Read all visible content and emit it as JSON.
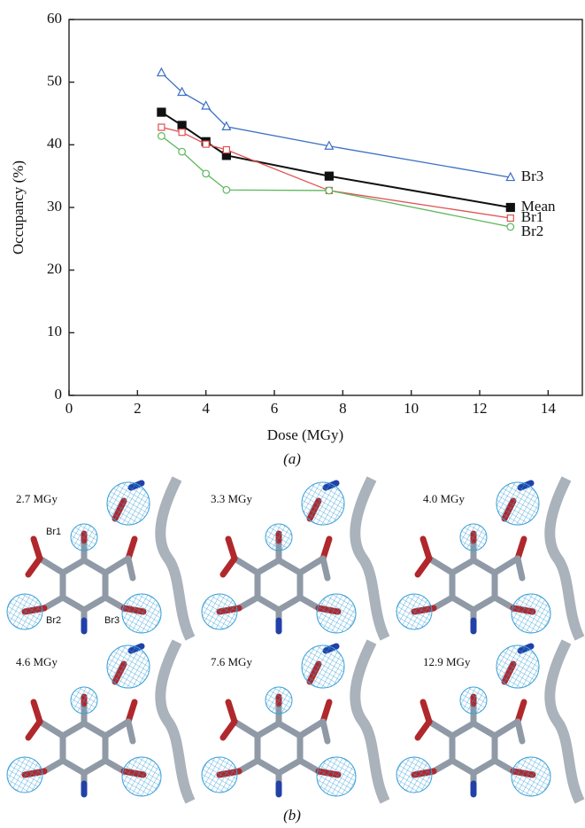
{
  "chart_data": {
    "type": "line",
    "xlabel": "Dose (MGy)",
    "ylabel": "Occupancy (%)",
    "x": [
      2.7,
      3.3,
      4.0,
      4.6,
      7.6,
      12.9
    ],
    "xlim": [
      0,
      15
    ],
    "xticks": [
      0,
      2,
      4,
      6,
      8,
      10,
      12,
      14
    ],
    "ylim": [
      0,
      60
    ],
    "yticks": [
      0,
      10,
      20,
      30,
      40,
      50,
      60
    ],
    "series": [
      {
        "name": "Br3",
        "color": "#3a6fc4",
        "marker": "triangle",
        "values": [
          51.5,
          48.4,
          46.2,
          42.9,
          39.8,
          34.8
        ]
      },
      {
        "name": "Mean",
        "color": "#111111",
        "marker": "filled-square",
        "values": [
          45.2,
          43.1,
          40.5,
          38.3,
          35.0,
          30.0
        ]
      },
      {
        "name": "Br1",
        "color": "#e05050",
        "marker": "open-square",
        "values": [
          42.8,
          42.0,
          40.1,
          39.2,
          32.7,
          28.3
        ]
      },
      {
        "name": "Br2",
        "color": "#5cb85c",
        "marker": "open-circle",
        "values": [
          41.4,
          38.9,
          35.4,
          32.8,
          32.7,
          26.9
        ]
      }
    ]
  },
  "figure": {
    "caption_a": "(a)",
    "caption_b": "(b)",
    "panels": [
      "2.7 MGy",
      "3.3 MGy",
      "4.0 MGy",
      "4.6 MGy",
      "7.6 MGy",
      "12.9 MGy"
    ],
    "atom_labels": [
      "Br1",
      "Br2",
      "Br3"
    ]
  }
}
